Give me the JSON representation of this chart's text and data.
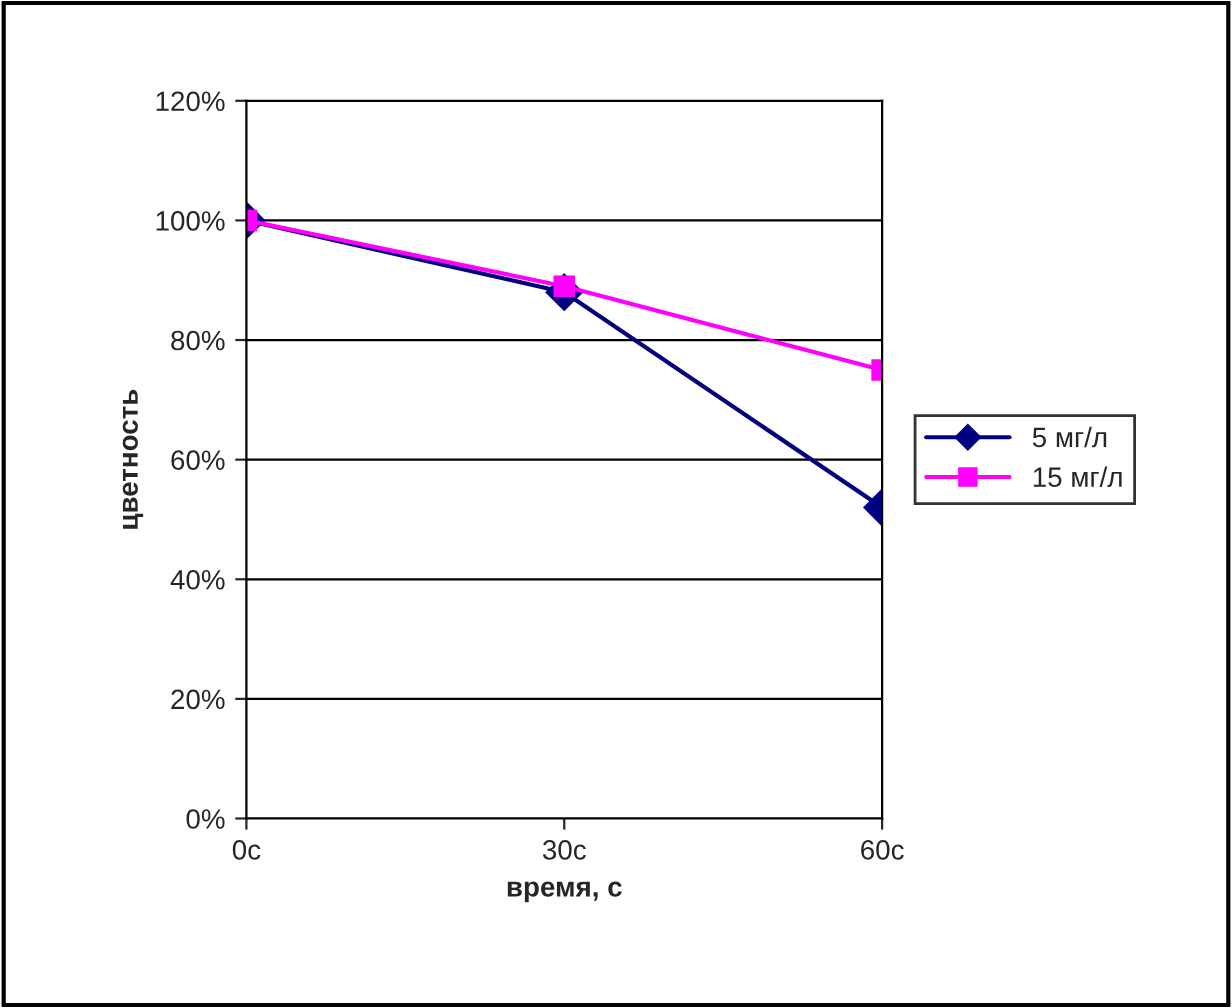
{
  "chart_data": {
    "type": "line",
    "xlabel": "время, с",
    "ylabel": "цветность",
    "categories": [
      "0с",
      "30с",
      "60с"
    ],
    "series": [
      {
        "name": "5 мг/л",
        "color": "#000080",
        "marker": "diamond",
        "values": [
          100,
          88,
          52
        ]
      },
      {
        "name": "15 мг/л",
        "color": "#ff00ff",
        "marker": "square",
        "values": [
          100,
          89,
          75
        ]
      }
    ],
    "ylim": [
      0,
      120
    ],
    "yticks": [
      {
        "value": 0,
        "label": "0%"
      },
      {
        "value": 20,
        "label": "20%"
      },
      {
        "value": 40,
        "label": "40%"
      },
      {
        "value": 60,
        "label": "60%"
      },
      {
        "value": 80,
        "label": "80%"
      },
      {
        "value": 100,
        "label": "100%"
      },
      {
        "value": 120,
        "label": "120%"
      }
    ],
    "grid": "y",
    "legend": "right"
  }
}
